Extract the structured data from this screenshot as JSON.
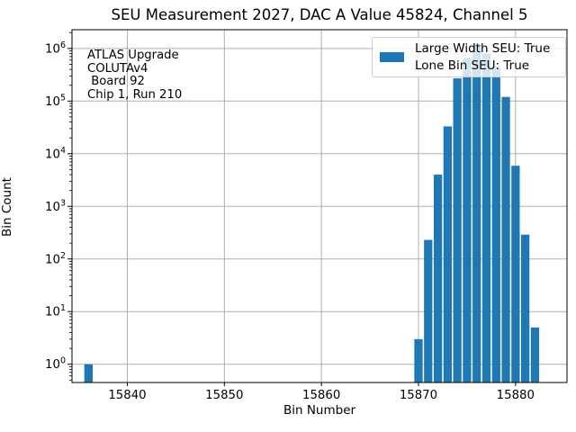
{
  "colors": {
    "bar": "#1f77b4",
    "grid": "#b0b0b0",
    "spine": "#000000",
    "legend_border": "#cccccc",
    "background": "#ffffff"
  },
  "chart_data": {
    "type": "bar",
    "title": "SEU Measurement 2027, DAC A Value 45824, Channel 5",
    "xlabel": "Bin Number",
    "ylabel": "Bin Count",
    "yscale": "log",
    "grid": true,
    "xlim": [
      15834.3,
      15885.3
    ],
    "ylim": [
      0.45,
      2270000
    ],
    "xticks": [
      15840,
      15850,
      15860,
      15870,
      15880
    ],
    "ytick_exponents": [
      0,
      1,
      2,
      3,
      4,
      5,
      6
    ],
    "bar_width": 0.86,
    "bins": [
      [
        15836,
        1
      ],
      [
        15870,
        3
      ],
      [
        15871,
        230
      ],
      [
        15872,
        4000
      ],
      [
        15873,
        33000
      ],
      [
        15874,
        270000
      ],
      [
        15875,
        660000
      ],
      [
        15876,
        1200000
      ],
      [
        15877,
        800000
      ],
      [
        15878,
        460000
      ],
      [
        15879,
        120000
      ],
      [
        15880,
        5900
      ],
      [
        15881,
        290
      ],
      [
        15882,
        5
      ]
    ],
    "legend": {
      "position": "upper right",
      "labels": [
        "Large Width SEU: True",
        "Lone Bin SEU: True"
      ]
    },
    "annotation": {
      "lines": [
        "ATLAS Upgrade",
        "COLUTAv4",
        " Board 92",
        "Chip 1, Run 210"
      ]
    }
  }
}
